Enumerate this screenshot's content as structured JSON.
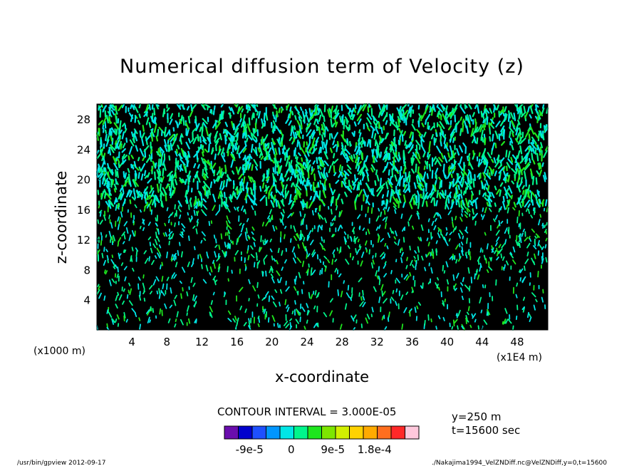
{
  "chart_data": {
    "type": "heatmap",
    "title": "Numerical diffusion term of Velocity (z)",
    "xlabel": "x-coordinate",
    "ylabel": "z-coordinate",
    "x_unit_left": "(x1000 m)",
    "x_unit_right": "(x1E4 m)",
    "xlim": [
      0,
      51.5
    ],
    "ylim": [
      0,
      30
    ],
    "xticks": [
      "4",
      "8",
      "12",
      "16",
      "20",
      "24",
      "28",
      "32",
      "36",
      "40",
      "44",
      "48"
    ],
    "yticks": [
      "4",
      "8",
      "12",
      "16",
      "20",
      "24",
      "28"
    ],
    "contour_interval": "CONTOUR INTERVAL = 3.000E-05",
    "annotation_y": "y=250 m",
    "annotation_t": "t=15600 sec",
    "colorbar": {
      "colors": [
        "#6a0dad",
        "#0000cd",
        "#1e50ff",
        "#0096ff",
        "#00e6e6",
        "#00f58c",
        "#1ee61e",
        "#7de600",
        "#d2f000",
        "#ffd200",
        "#ffaa00",
        "#ff6e1e",
        "#ff2828",
        "#ffc8dc"
      ],
      "tick_labels": [
        "-9e-5",
        "0",
        "9e-5",
        "1.8e-4"
      ]
    }
  },
  "footer": {
    "left": "/usr/bin/gpview   2012-09-17",
    "right": "./Nakajima1994_VelZNDiff.nc@VelZNDiff,y=0,t=15600"
  }
}
